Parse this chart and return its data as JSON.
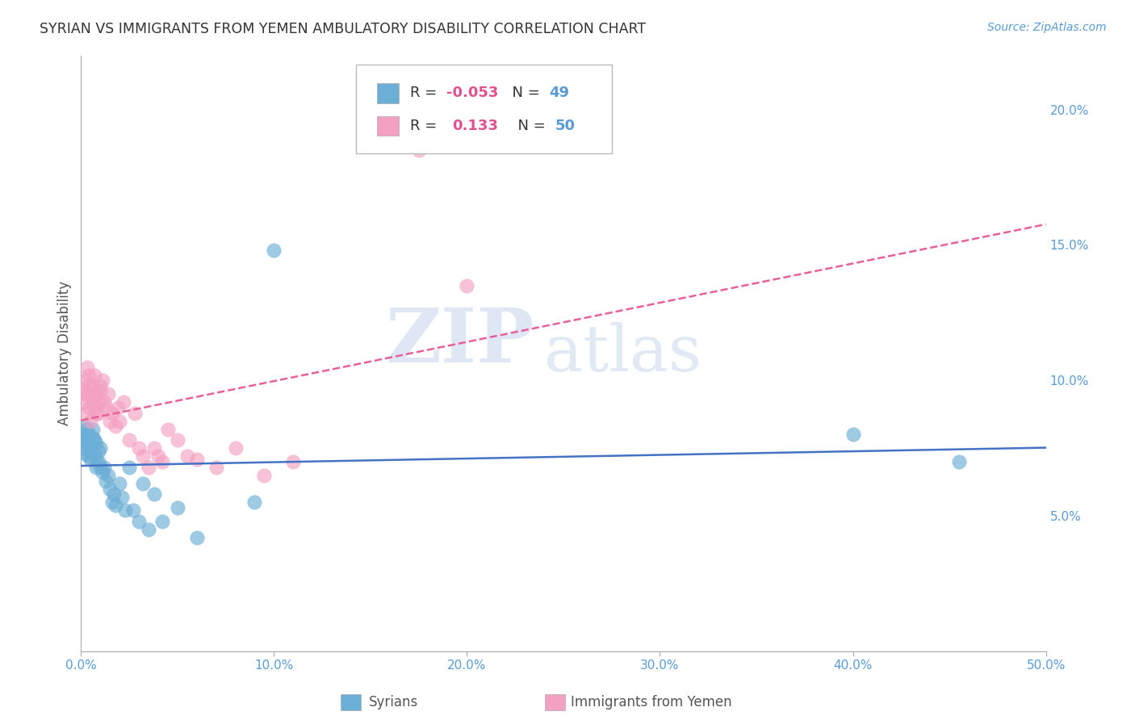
{
  "title": "SYRIAN VS IMMIGRANTS FROM YEMEN AMBULATORY DISABILITY CORRELATION CHART",
  "source": "Source: ZipAtlas.com",
  "ylabel": "Ambulatory Disability",
  "watermark_zip": "ZIP",
  "watermark_atlas": "atlas",
  "xlim": [
    0.0,
    0.5
  ],
  "ylim": [
    0.0,
    0.22
  ],
  "xticks": [
    0.0,
    0.1,
    0.2,
    0.3,
    0.4,
    0.5
  ],
  "xtick_labels": [
    "0.0%",
    "10.0%",
    "20.0%",
    "30.0%",
    "40.0%",
    "50.0%"
  ],
  "yticks": [
    0.05,
    0.1,
    0.15,
    0.2
  ],
  "ytick_labels": [
    "5.0%",
    "10.0%",
    "15.0%",
    "20.0%"
  ],
  "syrians_color": "#6baed6",
  "yemen_color": "#f4a0c0",
  "legend_R_syrian": "-0.053",
  "legend_N_syrian": "49",
  "legend_R_yemen": "0.133",
  "legend_N_yemen": "50",
  "syrian_line_color": "#4472c4",
  "yemen_line_color": "#e8609a",
  "background_color": "#ffffff",
  "grid_color": "#dddddd",
  "syrians_x": [
    0.001,
    0.001,
    0.002,
    0.002,
    0.002,
    0.003,
    0.003,
    0.003,
    0.004,
    0.004,
    0.004,
    0.005,
    0.005,
    0.005,
    0.006,
    0.006,
    0.007,
    0.007,
    0.008,
    0.008,
    0.008,
    0.009,
    0.009,
    0.01,
    0.01,
    0.011,
    0.012,
    0.013,
    0.014,
    0.015,
    0.016,
    0.017,
    0.018,
    0.02,
    0.021,
    0.023,
    0.025,
    0.027,
    0.03,
    0.032,
    0.035,
    0.038,
    0.042,
    0.05,
    0.06,
    0.09,
    0.1,
    0.4,
    0.455
  ],
  "syrians_y": [
    0.075,
    0.08,
    0.078,
    0.073,
    0.083,
    0.082,
    0.079,
    0.076,
    0.077,
    0.072,
    0.08,
    0.075,
    0.071,
    0.074,
    0.079,
    0.082,
    0.078,
    0.073,
    0.077,
    0.068,
    0.071,
    0.07,
    0.074,
    0.068,
    0.075,
    0.066,
    0.068,
    0.063,
    0.065,
    0.06,
    0.055,
    0.058,
    0.054,
    0.062,
    0.057,
    0.052,
    0.068,
    0.052,
    0.048,
    0.062,
    0.045,
    0.058,
    0.048,
    0.053,
    0.042,
    0.055,
    0.148,
    0.08,
    0.07
  ],
  "yemen_x": [
    0.001,
    0.001,
    0.002,
    0.002,
    0.003,
    0.003,
    0.004,
    0.004,
    0.004,
    0.005,
    0.005,
    0.006,
    0.006,
    0.007,
    0.007,
    0.007,
    0.008,
    0.008,
    0.009,
    0.009,
    0.01,
    0.01,
    0.011,
    0.012,
    0.013,
    0.014,
    0.015,
    0.016,
    0.018,
    0.019,
    0.02,
    0.022,
    0.025,
    0.028,
    0.03,
    0.032,
    0.035,
    0.038,
    0.04,
    0.042,
    0.045,
    0.05,
    0.055,
    0.06,
    0.07,
    0.08,
    0.095,
    0.11,
    0.175,
    0.2
  ],
  "yemen_y": [
    0.095,
    0.092,
    0.1,
    0.097,
    0.088,
    0.105,
    0.09,
    0.095,
    0.102,
    0.098,
    0.085,
    0.092,
    0.098,
    0.102,
    0.09,
    0.095,
    0.088,
    0.095,
    0.092,
    0.088,
    0.096,
    0.098,
    0.1,
    0.092,
    0.09,
    0.095,
    0.085,
    0.088,
    0.083,
    0.09,
    0.085,
    0.092,
    0.078,
    0.088,
    0.075,
    0.072,
    0.068,
    0.075,
    0.072,
    0.07,
    0.082,
    0.078,
    0.072,
    0.071,
    0.068,
    0.075,
    0.065,
    0.07,
    0.185,
    0.135
  ]
}
